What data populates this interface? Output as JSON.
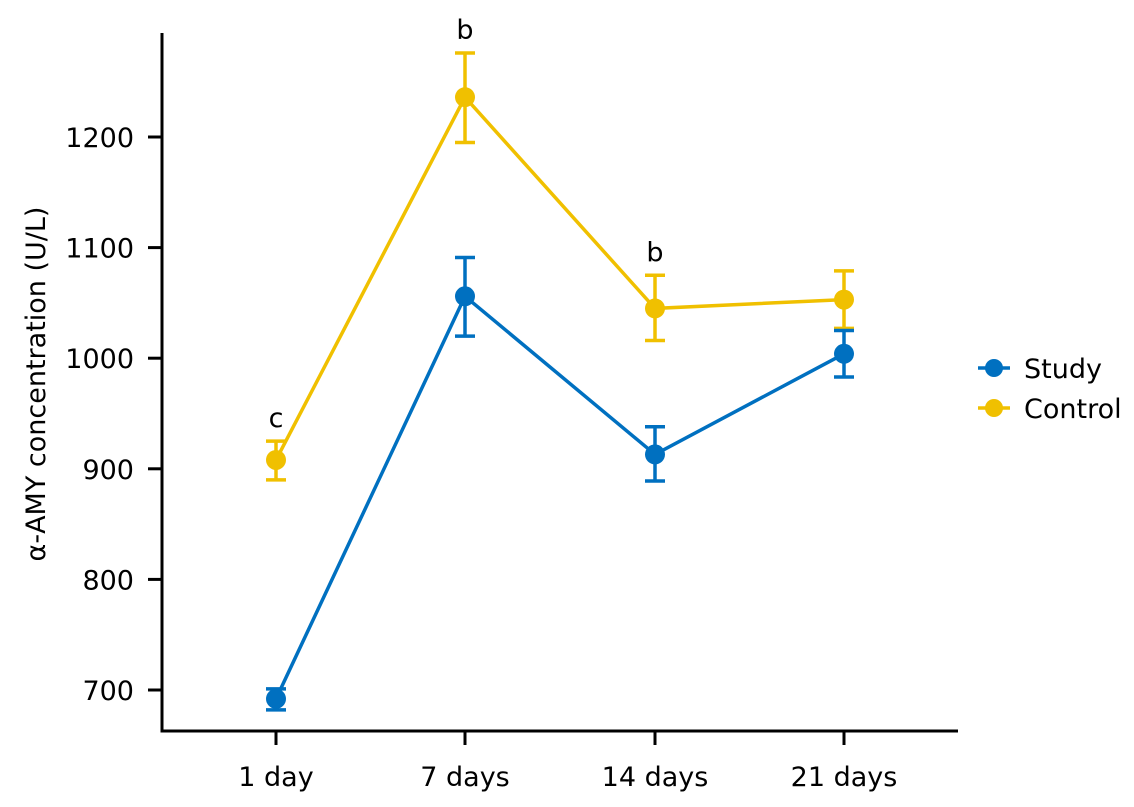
{
  "chart_data": {
    "type": "line",
    "title": "",
    "xlabel": "",
    "ylabel": "α-AMY concentration (U/L)",
    "categories": [
      "1 day",
      "7 days",
      "14 days",
      "21 days"
    ],
    "yticks": [
      700,
      800,
      900,
      1000,
      1100,
      1200
    ],
    "ylim": [
      665,
      1290
    ],
    "grid": false,
    "legend_position": "right",
    "series": [
      {
        "name": "Study",
        "color": "#0070c0",
        "values": [
          692,
          1056,
          913,
          1004
        ],
        "error_low": [
          682,
          1020,
          889,
          983
        ],
        "error_high": [
          701,
          1091,
          938,
          1025
        ]
      },
      {
        "name": "Control",
        "color": "#f0c000",
        "values": [
          908,
          1236,
          1045,
          1053
        ],
        "error_low": [
          890,
          1195,
          1016,
          1027
        ],
        "error_high": [
          925,
          1276,
          1075,
          1079
        ]
      }
    ],
    "annotations": [
      {
        "category": "1 day",
        "text": "c"
      },
      {
        "category": "7 days",
        "text": "b"
      },
      {
        "category": "14 days",
        "text": "b"
      }
    ]
  }
}
